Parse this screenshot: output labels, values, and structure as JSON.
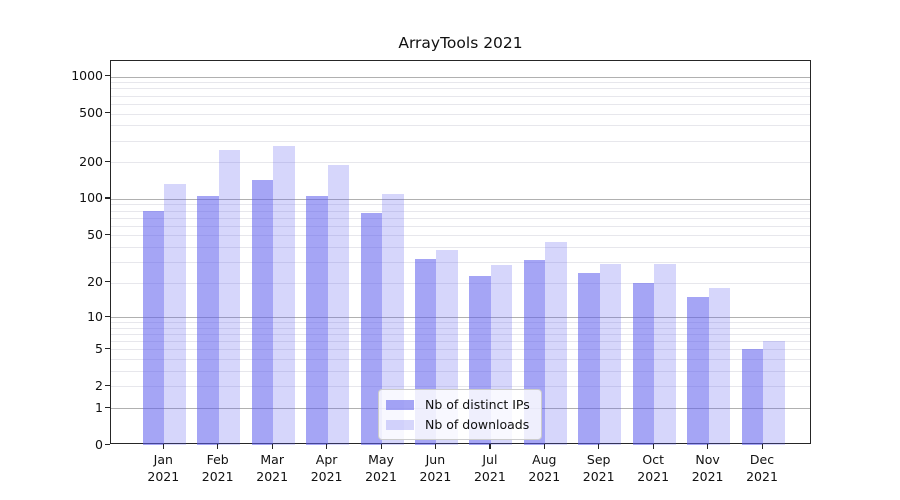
{
  "chart_data": {
    "type": "bar",
    "title": "ArrayTools 2021",
    "categories": [
      "Jan\n2021",
      "Feb\n2021",
      "Mar\n2021",
      "Apr\n2021",
      "May\n2021",
      "Jun\n2021",
      "Jul\n2021",
      "Aug\n2021",
      "Sep\n2021",
      "Oct\n2021",
      "Nov\n2021",
      "Dec\n2021"
    ],
    "series": [
      {
        "name": "Nb of distinct IPs",
        "color": "rgba(95,95,238,0.56)",
        "values": [
          79,
          105,
          144,
          106,
          76,
          32,
          23,
          31,
          24,
          20,
          15,
          5
        ]
      },
      {
        "name": "Nb of downloads",
        "color": "rgba(95,95,238,0.26)",
        "values": [
          133,
          250,
          273,
          190,
          110,
          38,
          28,
          44,
          29,
          29,
          18,
          6
        ]
      }
    ],
    "xlabel": "",
    "ylabel": "",
    "yscale": "log10(1+x)",
    "ylim": [
      0,
      1340
    ],
    "y_tick_labels": [
      1000,
      500,
      200,
      100,
      50,
      20,
      10,
      5,
      2,
      1,
      0
    ],
    "y_major_gridlines": [
      1,
      10,
      100,
      1000
    ],
    "y_minor_gridlines": [
      2,
      3,
      4,
      5,
      6,
      7,
      8,
      9,
      20,
      30,
      40,
      50,
      60,
      70,
      80,
      90,
      200,
      300,
      400,
      500,
      600,
      700,
      800,
      900
    ],
    "grid": true,
    "legend_position": "lower center-right inside plot",
    "colors": {
      "axis": "#262626",
      "grid_major": "#b0b0b0",
      "grid_minor": "#e7e7ec",
      "text": "#111111",
      "background": "#ffffff"
    }
  }
}
